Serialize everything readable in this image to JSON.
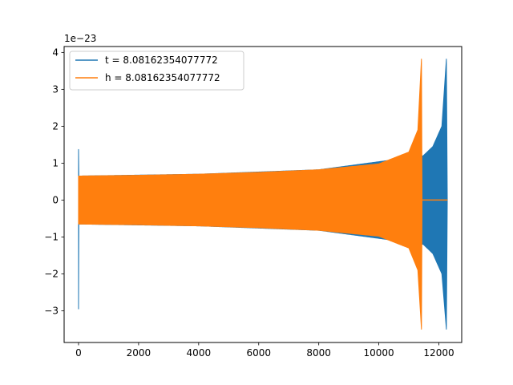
{
  "chart_data": {
    "type": "line",
    "title": "",
    "xlabel": "",
    "ylabel": "",
    "y_offset_label": "1e−23",
    "y_scale": 1e-23,
    "xlim": [
      -480,
      12760
    ],
    "ylim": [
      -3.86,
      4.16
    ],
    "xticks": [
      0,
      2000,
      4000,
      6000,
      8000,
      10000,
      12000
    ],
    "xtick_labels": [
      "0",
      "2000",
      "4000",
      "6000",
      "8000",
      "10000",
      "12000"
    ],
    "yticks": [
      -3,
      -2,
      -1,
      0,
      1,
      2,
      3,
      4
    ],
    "ytick_labels": [
      "−3",
      "−2",
      "−1",
      "0",
      "1",
      "2",
      "3",
      "4"
    ],
    "grid": false,
    "legend_position": "upper-left",
    "series": [
      {
        "name": "t = 8.08162354077772",
        "color": "#1f77b4",
        "envelope_points": [
          {
            "x": 0,
            "y_min": -2.95,
            "y_max": 1.37
          },
          {
            "x": 10,
            "y_min": -0.65,
            "y_max": 0.65
          },
          {
            "x": 4000,
            "y_min": -0.7,
            "y_max": 0.7
          },
          {
            "x": 8000,
            "y_min": -0.82,
            "y_max": 0.82
          },
          {
            "x": 11480,
            "y_min": -1.2,
            "y_max": 1.2
          },
          {
            "x": 11800,
            "y_min": -1.45,
            "y_max": 1.45
          },
          {
            "x": 12100,
            "y_min": -2.0,
            "y_max": 2.0
          },
          {
            "x": 12250,
            "y_min": -3.5,
            "y_max": 3.82
          },
          {
            "x": 12280,
            "y_min": 0,
            "y_max": 0
          }
        ]
      },
      {
        "name": "h = 8.08162354077772",
        "color": "#ff7f0e",
        "envelope_points": [
          {
            "x": 0,
            "y_min": -0.65,
            "y_max": 0.65
          },
          {
            "x": 2000,
            "y_min": -0.67,
            "y_max": 0.67
          },
          {
            "x": 4000,
            "y_min": -0.7,
            "y_max": 0.7
          },
          {
            "x": 6000,
            "y_min": -0.75,
            "y_max": 0.75
          },
          {
            "x": 8000,
            "y_min": -0.82,
            "y_max": 0.82
          },
          {
            "x": 10000,
            "y_min": -0.98,
            "y_max": 0.98
          },
          {
            "x": 11000,
            "y_min": -1.3,
            "y_max": 1.3
          },
          {
            "x": 11300,
            "y_min": -1.9,
            "y_max": 1.9
          },
          {
            "x": 11420,
            "y_min": -3.5,
            "y_max": 3.82
          },
          {
            "x": 11440,
            "y_min": 0,
            "y_max": 0
          },
          {
            "x": 12280,
            "y_min": 0,
            "y_max": 0
          }
        ]
      }
    ]
  }
}
